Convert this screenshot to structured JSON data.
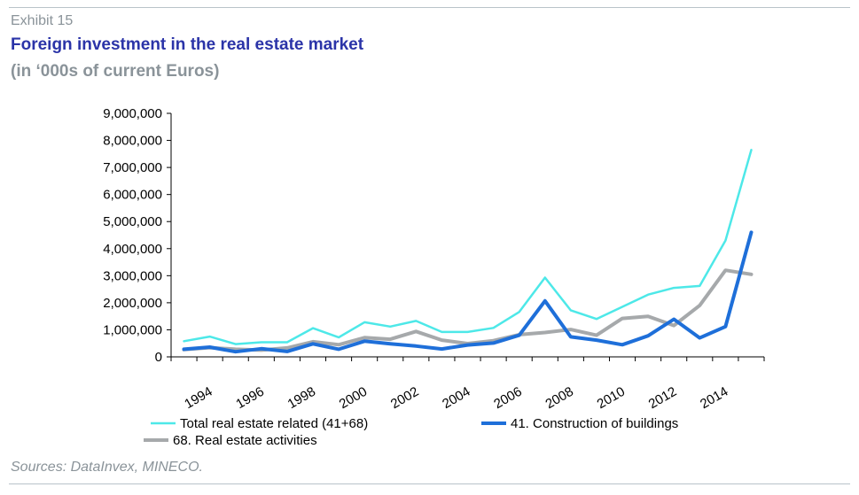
{
  "header": {
    "exhibit": "Exhibit 15",
    "title": "Foreign investment in the real estate market",
    "subtitle": "(in ‘000s of current Euros)"
  },
  "footer": {
    "source": "Sources: DataInvex, MINECO."
  },
  "chart_data": {
    "type": "line",
    "x": [
      1993,
      1994,
      1995,
      1996,
      1997,
      1998,
      1999,
      2000,
      2001,
      2002,
      2003,
      2004,
      2005,
      2006,
      2007,
      2008,
      2009,
      2010,
      2011,
      2012,
      2013,
      2014,
      2015
    ],
    "x_tick_labels": [
      "1994",
      "1996",
      "1998",
      "2000",
      "2002",
      "2004",
      "2006",
      "2008",
      "2010",
      "2012",
      "2014"
    ],
    "y_tick_labels": [
      "0",
      "1,000,000",
      "2,000,000",
      "3,000,000",
      "4,000,000",
      "5,000,000",
      "6,000,000",
      "7,000,000",
      "8,000,000",
      "9,000,000"
    ],
    "ylim": [
      0,
      9000000
    ],
    "grid": false,
    "legend_position": "bottom",
    "series": [
      {
        "name": "Total real estate related (41+68)",
        "color": "#4de8e8",
        "values": [
          580000,
          750000,
          470000,
          540000,
          540000,
          1060000,
          720000,
          1280000,
          1120000,
          1330000,
          920000,
          920000,
          1070000,
          1660000,
          2930000,
          1720000,
          1400000,
          1850000,
          2300000,
          2550000,
          2620000,
          4300000,
          7650000
        ]
      },
      {
        "name": "41. Construction of buildings",
        "color": "#1e6fd9",
        "values": [
          280000,
          360000,
          190000,
          300000,
          200000,
          480000,
          280000,
          580000,
          480000,
          400000,
          290000,
          440000,
          510000,
          800000,
          2070000,
          740000,
          620000,
          450000,
          780000,
          1390000,
          700000,
          1120000,
          4600000
        ]
      },
      {
        "name": "68. Real estate activities",
        "color": "#a6a9ab",
        "values": [
          270000,
          340000,
          280000,
          250000,
          330000,
          560000,
          450000,
          710000,
          650000,
          940000,
          620000,
          490000,
          600000,
          820000,
          900000,
          1010000,
          800000,
          1420000,
          1500000,
          1160000,
          1900000,
          3200000,
          3050000
        ]
      }
    ]
  }
}
